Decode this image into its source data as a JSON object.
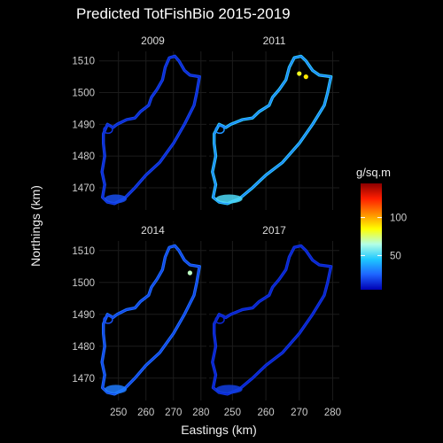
{
  "chart_data": {
    "type": "heatmap",
    "title": "Predicted TotFishBio 2015-2019",
    "xlabel": "Eastings (km)",
    "ylabel": "Northings (km)",
    "xlim": [
      243,
      282
    ],
    "ylim": [
      1463,
      1513
    ],
    "x_ticks": [
      250,
      260,
      270,
      280
    ],
    "y_ticks": [
      1470,
      1480,
      1490,
      1500,
      1510
    ],
    "panels": [
      {
        "label": "2009",
        "level": 0.1,
        "hotspots": []
      },
      {
        "label": "2011",
        "level": 0.3,
        "hotspots": [
          {
            "x": 270,
            "y": 1506,
            "value": 0.55
          },
          {
            "x": 272,
            "y": 1505,
            "value": 0.6
          }
        ]
      },
      {
        "label": "2014",
        "level": 0.16,
        "hotspots": [
          {
            "x": 276,
            "y": 1503,
            "value": 0.45
          }
        ]
      },
      {
        "label": "2017",
        "level": 0.08,
        "hotspots": []
      }
    ],
    "legend": {
      "title": "g/sq.m",
      "ticks": [
        50,
        100
      ],
      "range": [
        5,
        145
      ],
      "colors": [
        "#0000b4",
        "#1e64ff",
        "#1ec8ff",
        "#b4ffe6",
        "#ffff00",
        "#ff8c00",
        "#ff1e00",
        "#8b0000"
      ]
    },
    "grid": true,
    "island_outline": [
      [
        244.5,
        1487
      ],
      [
        246,
        1490
      ],
      [
        248,
        1489
      ],
      [
        249.5,
        1490
      ],
      [
        253,
        1491.5
      ],
      [
        256,
        1492
      ],
      [
        258,
        1494
      ],
      [
        261,
        1496
      ],
      [
        262,
        1498.5
      ],
      [
        264,
        1501
      ],
      [
        266,
        1504
      ],
      [
        267,
        1508
      ],
      [
        268.5,
        1511
      ],
      [
        270.5,
        1511.5
      ],
      [
        272,
        1510
      ],
      [
        274,
        1507
      ],
      [
        276,
        1505.5
      ],
      [
        279.5,
        1505
      ],
      [
        278.5,
        1500
      ],
      [
        277.5,
        1496
      ],
      [
        274,
        1490
      ],
      [
        270,
        1484
      ],
      [
        265,
        1478
      ],
      [
        260,
        1474
      ],
      [
        256,
        1470
      ],
      [
        252,
        1466.5
      ],
      [
        248.5,
        1465
      ],
      [
        246,
        1465.5
      ],
      [
        244.2,
        1467
      ],
      [
        245,
        1471
      ],
      [
        244,
        1475
      ],
      [
        245,
        1480
      ],
      [
        244.5,
        1484
      ]
    ]
  }
}
